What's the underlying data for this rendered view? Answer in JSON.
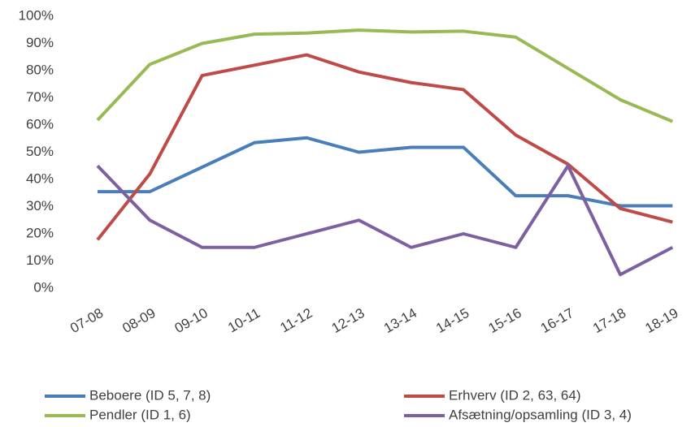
{
  "chart_data": {
    "type": "line",
    "categories": [
      "07-08",
      "08-09",
      "09-10",
      "10-11",
      "11-12",
      "12-13",
      "13-14",
      "14-15",
      "15-16",
      "16-17",
      "17-18",
      "18-19"
    ],
    "series": [
      {
        "name": "Beboere (ID 5, 7, 8)",
        "color": "#4a7ebb",
        "values": [
          35.5,
          35.5,
          44.5,
          53.5,
          55.3,
          50,
          51.8,
          51.8,
          34,
          34,
          30.3,
          30.3
        ]
      },
      {
        "name": "Erhverv (ID 2, 63, 64)",
        "color": "#be4b48",
        "values": [
          17.8,
          42,
          78.2,
          82,
          85.8,
          79.5,
          75.6,
          73,
          56.3,
          45.6,
          29.3,
          24.3
        ]
      },
      {
        "name": "Pendler (ID 1, 6)",
        "color": "#98b954",
        "values": [
          61.8,
          82.3,
          90,
          93.4,
          93.8,
          94.9,
          94.2,
          94.5,
          92.3,
          80.8,
          69.3,
          61.3
        ]
      },
      {
        "name": "Afsætning/opsamling (ID 3, 4)",
        "color": "#7d60a0",
        "values": [
          45,
          25,
          15,
          15,
          20,
          25,
          15,
          20,
          15,
          45,
          5,
          15
        ]
      }
    ],
    "ylim": [
      0,
      100
    ],
    "yticks": [
      {
        "value": 0,
        "label": "0%"
      },
      {
        "value": 10,
        "label": "10%"
      },
      {
        "value": 20,
        "label": "20%"
      },
      {
        "value": 30,
        "label": "30%"
      },
      {
        "value": 40,
        "label": "40%"
      },
      {
        "value": 50,
        "label": "50%"
      },
      {
        "value": 60,
        "label": "60%"
      },
      {
        "value": 70,
        "label": "70%"
      },
      {
        "value": 80,
        "label": "80%"
      },
      {
        "value": 90,
        "label": "90%"
      },
      {
        "value": 100,
        "label": "100%"
      }
    ],
    "grid": false
  }
}
